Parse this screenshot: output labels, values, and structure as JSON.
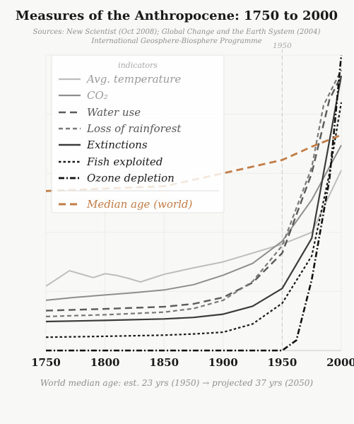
{
  "chart_data": {
    "type": "line",
    "title": "Measures of the Anthropocene: 1750 to 2000",
    "subtitle_1": "Sources: New Scientist (Oct 2008); Global Change and the Earth System (2004)",
    "subtitle_2": "International Geosphere-Biosphere Programme",
    "xlim": [
      1750,
      2000
    ],
    "ylim": [
      0,
      1
    ],
    "x_ticks": [
      "1750",
      "1800",
      "1850",
      "1900",
      "1950",
      "2000"
    ],
    "legend_title": "indicators",
    "legend_position": "top-left",
    "annotation": {
      "x": 1950,
      "label": "1950"
    },
    "footnote": "World median age: est. 23 yrs (1950) → projected 37 yrs (2050)",
    "series": [
      {
        "name": "Avg. temperature",
        "color": "#bdbdbd",
        "dash": "solid",
        "x": [
          1750,
          1770,
          1790,
          1800,
          1810,
          1820,
          1830,
          1850,
          1875,
          1900,
          1925,
          1950,
          1975,
          2000
        ],
        "y": [
          0.218,
          0.27,
          0.247,
          0.26,
          0.254,
          0.244,
          0.232,
          0.258,
          0.28,
          0.3,
          0.33,
          0.36,
          0.4,
          0.61
        ]
      },
      {
        "name": "CO₂",
        "color": "#8e8e8e",
        "dash": "solid",
        "x": [
          1750,
          1775,
          1800,
          1825,
          1850,
          1875,
          1900,
          1925,
          1950,
          1975,
          2000
        ],
        "y": [
          0.17,
          0.18,
          0.188,
          0.196,
          0.205,
          0.223,
          0.255,
          0.295,
          0.37,
          0.51,
          0.695
        ]
      },
      {
        "name": "Water use",
        "color": "#5a5a5a",
        "dash": "long",
        "x": [
          1750,
          1800,
          1850,
          1875,
          1900,
          1925,
          1950,
          1975,
          1990,
          2000
        ],
        "y": [
          0.135,
          0.141,
          0.148,
          0.158,
          0.18,
          0.23,
          0.33,
          0.6,
          0.85,
          0.93
        ]
      },
      {
        "name": "Loss of rainforest",
        "color": "#7a7a7a",
        "dash": "short",
        "x": [
          1750,
          1800,
          1850,
          1875,
          1900,
          1925,
          1950,
          1975,
          1985,
          2000
        ],
        "y": [
          0.115,
          0.121,
          0.13,
          0.142,
          0.17,
          0.234,
          0.355,
          0.62,
          0.83,
          0.95
        ]
      },
      {
        "name": "Extinctions",
        "color": "#3b3b3b",
        "dash": "solid",
        "x": [
          1750,
          1800,
          1850,
          1875,
          1900,
          1925,
          1950,
          1975,
          1985,
          2000
        ],
        "y": [
          0.098,
          0.102,
          0.107,
          0.112,
          0.123,
          0.15,
          0.21,
          0.38,
          0.6,
          0.93
        ]
      },
      {
        "name": "Fish exploited",
        "color": "#1a1a1a",
        "dash": "dotted",
        "x": [
          1750,
          1800,
          1850,
          1875,
          1900,
          1925,
          1950,
          1975,
          1990,
          2000
        ],
        "y": [
          0.045,
          0.048,
          0.052,
          0.056,
          0.062,
          0.09,
          0.16,
          0.32,
          0.6,
          0.84
        ]
      },
      {
        "name": "Ozone depletion",
        "color": "#111111",
        "dash": "dashdot",
        "x": [
          1750,
          1800,
          1850,
          1900,
          1950,
          1962,
          1975,
          1990,
          2000
        ],
        "y": [
          0.0,
          0.0,
          0.0,
          0.0,
          0.0,
          0.035,
          0.24,
          0.58,
          1.0
        ]
      },
      {
        "name": "Median age (world)",
        "color": "#c27c46",
        "dash": "long",
        "x": [
          1750,
          1800,
          1850,
          1900,
          1950,
          1975,
          2000
        ],
        "y": [
          0.54,
          0.548,
          0.556,
          0.6,
          0.645,
          0.69,
          0.73
        ]
      }
    ]
  }
}
